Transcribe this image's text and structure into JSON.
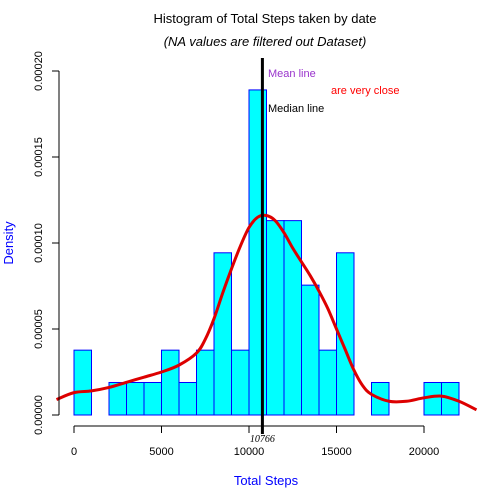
{
  "chart_data": {
    "type": "bar",
    "title": "Histogram of Total Steps taken by date",
    "subtitle": "(NA values are filtered out Dataset)",
    "xlabel": "Total Steps",
    "ylabel": "Density",
    "xlim": [
      0,
      22000
    ],
    "ylim": [
      0,
      0.0002
    ],
    "x_ticks": [
      0,
      5000,
      10000,
      15000,
      20000
    ],
    "x_tick_labels": [
      "0",
      "5000",
      "10000",
      "15000",
      "20000"
    ],
    "y_ticks": [
      0,
      5e-05,
      0.0001,
      0.00015,
      0.0002
    ],
    "y_tick_labels": [
      "0.00000",
      "0.00005",
      "0.00010",
      "0.00015",
      "0.00020"
    ],
    "bin_width": 1000,
    "bins_start": [
      0,
      1000,
      2000,
      3000,
      4000,
      5000,
      6000,
      7000,
      8000,
      9000,
      10000,
      11000,
      12000,
      13000,
      14000,
      15000,
      16000,
      17000,
      18000,
      19000,
      20000,
      21000
    ],
    "values": [
      3.77e-05,
      0,
      1.89e-05,
      1.89e-05,
      1.89e-05,
      3.77e-05,
      1.89e-05,
      3.77e-05,
      9.43e-05,
      3.77e-05,
      0.000189,
      0.000113,
      0.000113,
      7.55e-05,
      3.77e-05,
      9.43e-05,
      0,
      1.89e-05,
      0,
      0,
      1.89e-05,
      1.89e-05
    ],
    "bar_fill": "#00ffff",
    "bar_stroke": "#0000ff",
    "density_curve": {
      "color": "#dd0000",
      "x": [
        -1000,
        0,
        1000,
        2000,
        3000,
        4000,
        5000,
        6000,
        7000,
        7500,
        8000,
        8500,
        9000,
        9500,
        10000,
        10500,
        11000,
        11500,
        12000,
        12500,
        13000,
        13500,
        14000,
        14500,
        15000,
        15500,
        16000,
        16500,
        17000,
        18000,
        19000,
        20000,
        21000,
        22000,
        23000
      ],
      "y": [
        9e-06,
        1.3e-05,
        1.4e-05,
        1.6e-05,
        1.9e-05,
        2.2e-05,
        2.5e-05,
        2.9e-05,
        3.6e-05,
        4.4e-05,
        5.6e-05,
        7.1e-05,
        8.5e-05,
        9.8e-05,
        0.000109,
        0.000115,
        0.000116,
        0.000113,
        0.000106,
        9.7e-05,
        8.9e-05,
        8.1e-05,
        7.2e-05,
        6.2e-05,
        5e-05,
        3.8e-05,
        2.6e-05,
        1.7e-05,
        1.2e-05,
        8e-06,
        8e-06,
        1e-05,
        1.1e-05,
        8e-06,
        3e-06
      ]
    },
    "median": {
      "value": 10766,
      "label": "10766",
      "color": "#000000"
    },
    "annotations": {
      "mean": {
        "text": "Mean line",
        "color": "#9933cc"
      },
      "close": {
        "text": "are very close",
        "color": "#ff0000"
      },
      "median": {
        "text": "Median line",
        "color": "#000000"
      }
    },
    "axis_label_color": "#0000ff",
    "grid": false,
    "legend": "none"
  }
}
